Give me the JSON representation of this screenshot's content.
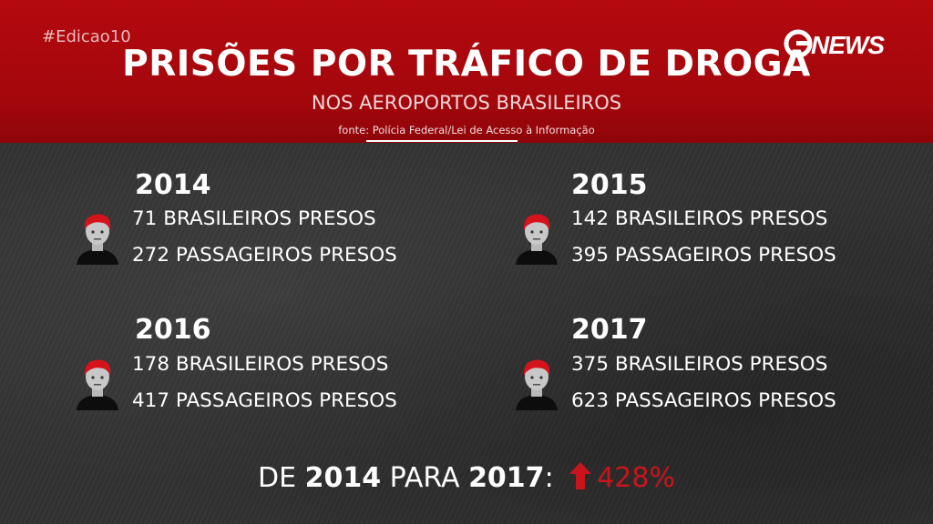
{
  "hashtag": "#Edicao10",
  "logo_text": "GNEWS",
  "title": "PRISÕES POR TRÁFICO DE DROGA",
  "subtitle": "NOS AEROPORTOS BRASILEIROS",
  "source": "fonte: Polícia Federal/Lei de Acesso à Informação",
  "colors": {
    "header_red": "#b4090f",
    "accent_red": "#c8151b",
    "background": "#2f2f2f"
  },
  "years": [
    {
      "year": "2014",
      "brasileiros": "71 BRASILEIROS PRESOS",
      "passageiros": "272 PASSAGEIROS PRESOS",
      "icon": "person-icon"
    },
    {
      "year": "2015",
      "brasileiros": "142 BRASILEIROS PRESOS",
      "passageiros": "395 PASSAGEIROS PRESOS",
      "icon": "person-icon"
    },
    {
      "year": "2016",
      "brasileiros": "178 BRASILEIROS PRESOS",
      "passageiros": "417 PASSAGEIROS PRESOS",
      "icon": "person-icon"
    },
    {
      "year": "2017",
      "brasileiros": "375 BRASILEIROS PRESOS",
      "passageiros": "623 PASSAGEIROS PRESOS",
      "icon": "person-icon"
    }
  ],
  "footer": {
    "prefix": "DE",
    "from_year": "2014",
    "middle": "PARA",
    "to_year": "2017",
    "colon": ":",
    "icon": "arrow-up-icon",
    "change": "428%"
  }
}
